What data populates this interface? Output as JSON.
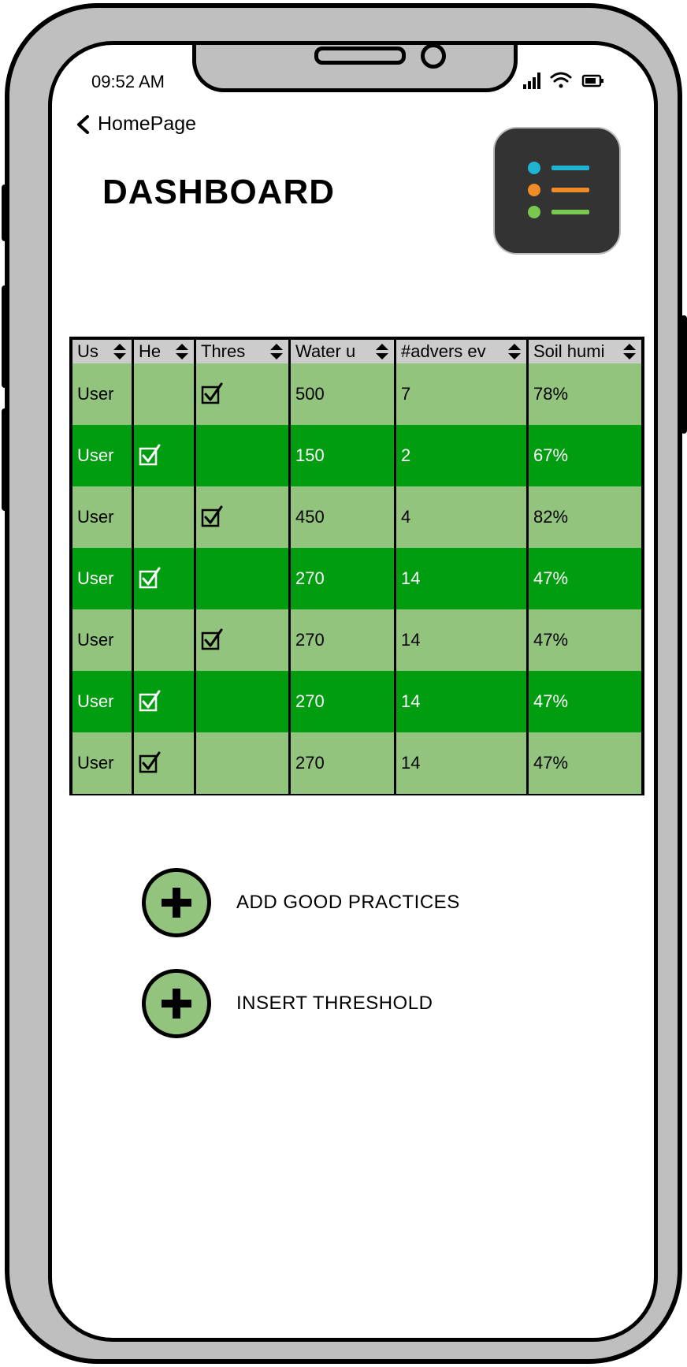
{
  "status_bar": {
    "time": "09:52 AM"
  },
  "nav": {
    "back_label": "HomePage"
  },
  "page": {
    "title": "DASHBOARD"
  },
  "colors": {
    "row_light": "#93c47d",
    "row_dark": "#009d10",
    "header_bg": "#cccccc",
    "app_icon_bg": "#333333",
    "accent_cyan": "#1eb4d2",
    "accent_orange": "#f08c28",
    "accent_green": "#78c850"
  },
  "table": {
    "headers": [
      "Us",
      "He",
      "Thres",
      "Water u",
      "#advers ev",
      "Soil humi"
    ],
    "rows": [
      {
        "user": "User",
        "he": false,
        "thres": true,
        "water": "500",
        "adverse": "7",
        "soil": "78%",
        "style": "light"
      },
      {
        "user": "User",
        "he": true,
        "thres": false,
        "water": "150",
        "adverse": "2",
        "soil": "67%",
        "style": "dark"
      },
      {
        "user": "User",
        "he": false,
        "thres": true,
        "water": "450",
        "adverse": "4",
        "soil": "82%",
        "style": "light"
      },
      {
        "user": "User",
        "he": true,
        "thres": false,
        "water": "270",
        "adverse": "14",
        "soil": "47%",
        "style": "dark"
      },
      {
        "user": "User",
        "he": false,
        "thres": true,
        "water": "270",
        "adverse": "14",
        "soil": "47%",
        "style": "light"
      },
      {
        "user": "User",
        "he": true,
        "thres": false,
        "water": "270",
        "adverse": "14",
        "soil": "47%",
        "style": "dark"
      },
      {
        "user": "User",
        "he": true,
        "thres": false,
        "water": "270",
        "adverse": "14",
        "soil": "47%",
        "style": "light"
      }
    ]
  },
  "actions": [
    {
      "label": "ADD GOOD PRACTICES",
      "icon": "plus-icon"
    },
    {
      "label": "INSERT THRESHOLD",
      "icon": "plus-icon"
    }
  ]
}
